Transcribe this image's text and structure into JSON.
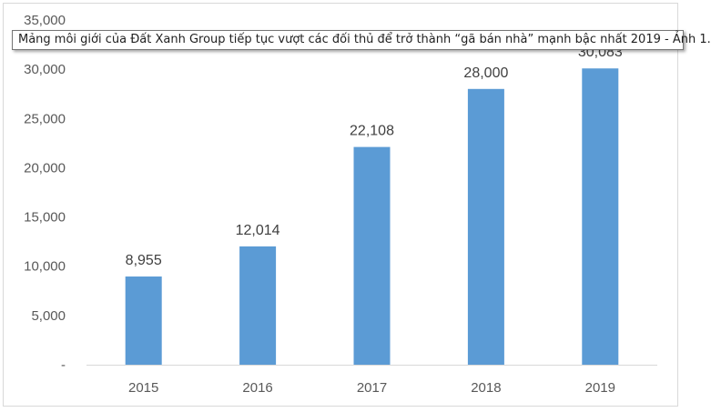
{
  "tooltip": {
    "text": "Mảng môi giới của Đất Xanh Group tiếp tục vượt các đối thủ để trở thành “gã bán nhà” mạnh bậc nhất 2019 - Ảnh 1."
  },
  "chart_data": {
    "type": "bar",
    "title": "",
    "xlabel": "",
    "ylabel": "",
    "categories": [
      "2015",
      "2016",
      "2017",
      "2018",
      "2019"
    ],
    "values": [
      8955,
      12014,
      22108,
      28000,
      30083
    ],
    "value_labels": [
      "8,955",
      "12,014",
      "22,108",
      "28,000",
      "30,083"
    ],
    "ylim": [
      0,
      35000
    ],
    "yticks": [
      0,
      5000,
      10000,
      15000,
      20000,
      25000,
      30000,
      35000
    ],
    "ytick_labels": [
      "-",
      "5,000",
      "10,000",
      "15,000",
      "20,000",
      "25,000",
      "30,000",
      "35,000"
    ],
    "grid": false,
    "legend": "none",
    "bar_color": "#5b9bd5"
  }
}
